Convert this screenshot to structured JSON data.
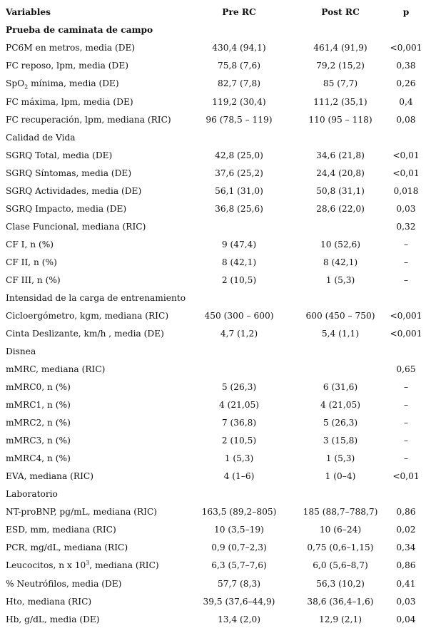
{
  "header": {
    "variables": "Variables",
    "pre": "Pre RC",
    "post": "Post RC",
    "p": "p"
  },
  "rows": [
    {
      "type": "section_bold",
      "label": "Prueba de caminata de campo"
    },
    {
      "label": "PC6M en metros, media (DE)",
      "pre": "430,4 (94,1)",
      "post": "461,4 (91,9)",
      "p": "<0,001"
    },
    {
      "label": "FC reposo, lpm, media (DE)",
      "pre": "75,8 (7,6)",
      "post": "79,2 (15,2)",
      "p": "0,38"
    },
    {
      "label_pre": "SpO",
      "label_sub": "2",
      "label_post": " mínima, media (DE)",
      "pre": "82,7 (7,8)",
      "post": "85 (7,7)",
      "p": "0,26"
    },
    {
      "label": "FC máxima, lpm, media (DE)",
      "pre": "119,2 (30,4)",
      "post": "111,2 (35,1)",
      "p": "0,4"
    },
    {
      "label": "FC recuperación, lpm, mediana (RIC)",
      "pre": "96 (78,5 – 119)",
      "post": "110 (95 – 118)",
      "p": "0,08"
    },
    {
      "type": "section",
      "label": "Calidad de Vida"
    },
    {
      "label": "SGRQ Total, media (DE)",
      "pre": "42,8 (25,0)",
      "post": "34,6 (21,8)",
      "p": "<0,01"
    },
    {
      "label": "SGRQ Síntomas, media (DE)",
      "pre": "37,6 (25,2)",
      "post": "24,4 (20,8)",
      "p": "<0,01"
    },
    {
      "label": "SGRQ Actividades, media (DE)",
      "pre": "56,1 (31,0)",
      "post": "50,8 (31,1)",
      "p": "0,018"
    },
    {
      "label": "SGRQ Impacto, media (DE)",
      "pre": "36,8 (25,6)",
      "post": "28,6 (22,0)",
      "p": "0,03"
    },
    {
      "label": "Clase Funcional, mediana (RIC)",
      "pre": "",
      "post": "",
      "p": "0,32"
    },
    {
      "label": "CF I, n (%)",
      "pre": "9 (47,4)",
      "post": "10 (52,6)",
      "p": "–"
    },
    {
      "label": "CF II, n (%)",
      "pre": "8 (42,1)",
      "post": "8 (42,1)",
      "p": "–"
    },
    {
      "label": "CF III, n (%)",
      "pre": "2 (10,5)",
      "post": "1 (5,3)",
      "p": "–"
    },
    {
      "type": "section",
      "label": "Intensidad de la carga de entrenamiento"
    },
    {
      "label": "Cicloergómetro, kgm, mediana (RIC)",
      "pre": "450 (300 – 600)",
      "post": "600 (450 – 750)",
      "p": "<0,001"
    },
    {
      "label": "Cinta Deslizante, km/h , media (DE)",
      "pre": "4,7 (1,2)",
      "post": "5,4 (1,1)",
      "p": "<0,001"
    },
    {
      "type": "section",
      "label": "Disnea"
    },
    {
      "label": "mMRC, mediana (RIC)",
      "pre": "",
      "post": "",
      "p": "0,65"
    },
    {
      "label": "mMRC0, n (%)",
      "pre": "5 (26,3)",
      "post": "6 (31,6)",
      "p": "–"
    },
    {
      "label": "mMRC1, n (%)",
      "pre": "4 (21,05)",
      "post": "4 (21,05)",
      "p": "–"
    },
    {
      "label": "mMRC2, n (%)",
      "pre": "7 (36,8)",
      "post": "5 (26,3)",
      "p": "–"
    },
    {
      "label": "mMRC3, n (%)",
      "pre": "2 (10,5)",
      "post": "3 (15,8)",
      "p": "–"
    },
    {
      "label": "mMRC4, n (%)",
      "pre": "1 (5,3)",
      "post": "1 (5,3)",
      "p": "–"
    },
    {
      "label": "EVA, mediana (RIC)",
      "pre": "4 (1–6)",
      "post": "1 (0–4)",
      "p": "<0,01"
    },
    {
      "type": "section",
      "label": "Laboratorio"
    },
    {
      "label": "NT-proBNP, pg/mL, mediana (RIC)",
      "pre": "163,5 (89,2–805)",
      "post": "185 (88,7–788,7)",
      "p": "0,86"
    },
    {
      "label": "ESD, mm, mediana (RIC)",
      "pre": "10 (3,5–19)",
      "post": "10 (6–24)",
      "p": "0,02"
    },
    {
      "label": "PCR, mg/dL, mediana (RIC)",
      "pre": "0,9 (0,7–2,3)",
      "post": "0,75 (0,6–1,15)",
      "p": "0,34"
    },
    {
      "label_pre": "Leucocitos, n x 10",
      "label_sup": "3",
      "label_post": ", mediana (RIC)",
      "pre": "6,3 (5,7–7,6)",
      "post": "6,0 (5,6–8,7)",
      "p": "0,86"
    },
    {
      "label": "% Neutrófilos, media (DE)",
      "pre": "57,7 (8,3)",
      "post": "56,3 (10,2)",
      "p": "0,41"
    },
    {
      "label": "Hto, mediana (RIC)",
      "pre": "39,5 (37,6–44,9)",
      "post": "38,6 (36,4–1,6)",
      "p": "0,03"
    },
    {
      "label": "Hb, g/dL, media (DE)",
      "pre": "13,4 (2,0)",
      "post": "12,9 (2,1)",
      "p": "0,04"
    }
  ]
}
